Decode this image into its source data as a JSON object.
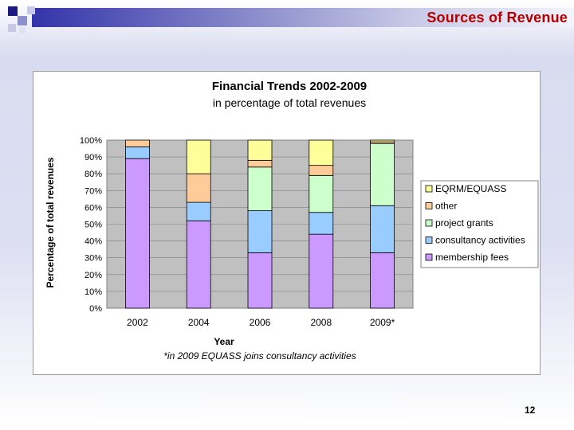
{
  "slide": {
    "title": "Sources of Revenue",
    "page_number": "12"
  },
  "chart_data": {
    "type": "bar",
    "stacked": true,
    "title": "Financial Trends 2002-2009",
    "subtitle": "in percentage of total revenues",
    "xlabel": "Year",
    "ylabel": "Percentage of total revenues",
    "note": "*in 2009 EQUASS joins consultancy activities",
    "categories": [
      "2002",
      "2004",
      "2006",
      "2008",
      "2009*"
    ],
    "ylim": [
      0,
      100
    ],
    "yticks": [
      "0%",
      "10%",
      "20%",
      "30%",
      "40%",
      "50%",
      "60%",
      "70%",
      "80%",
      "90%",
      "100%"
    ],
    "grid": true,
    "legend_position": "right",
    "series": [
      {
        "name": "membership fees",
        "color": "#cc99ff",
        "values": [
          89,
          52,
          33,
          44,
          33
        ]
      },
      {
        "name": "consultancy activities",
        "color": "#99ccff",
        "values": [
          7,
          11,
          25,
          13,
          28
        ]
      },
      {
        "name": "project grants",
        "color": "#ccffcc",
        "values": [
          0,
          0,
          26,
          22,
          37
        ]
      },
      {
        "name": "other",
        "color": "#ffcc99",
        "values": [
          4,
          17,
          4,
          6,
          1
        ]
      },
      {
        "name": "EQRM/EQUASS",
        "color": "#ffff99",
        "values": [
          0,
          20,
          12,
          15,
          1
        ]
      }
    ]
  }
}
